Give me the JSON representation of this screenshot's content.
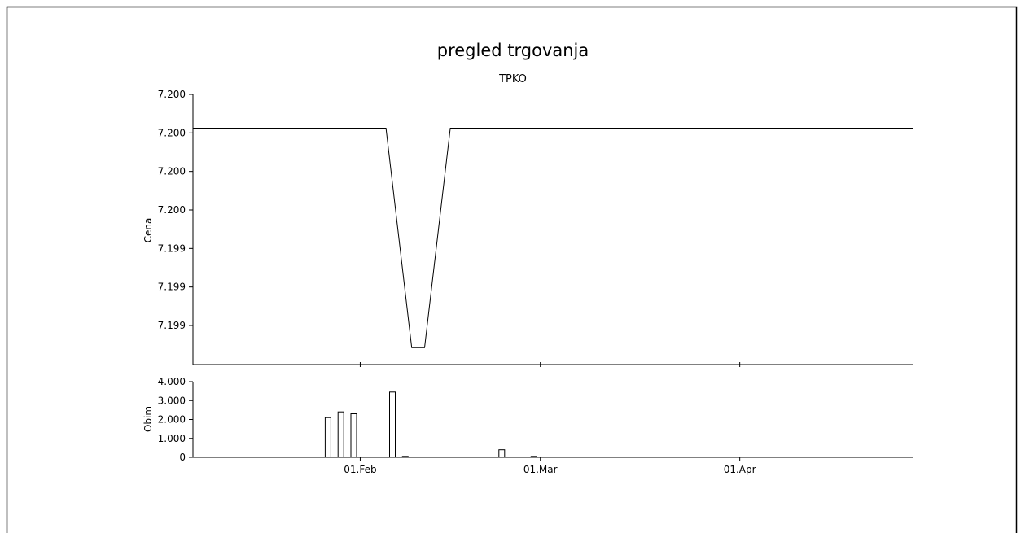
{
  "chart_data": [
    {
      "type": "line",
      "title": "pregled trgovanja",
      "subtitle": "TPKO",
      "ylabel": "Cena",
      "xlabel": "",
      "xlim": [
        "2014-01-06",
        "2014-04-28"
      ],
      "ytick_labels": [
        "7.200",
        "7.200",
        "7.200",
        "7.200",
        "7.199",
        "7.199",
        "7.199"
      ],
      "ylim": [
        7.1986,
        7.2002
      ],
      "grid": false,
      "series": [
        {
          "points": [
            {
              "x": "2014-01-06",
              "y": 7.2
            },
            {
              "x": "2014-02-05",
              "y": 7.2
            },
            {
              "x": "2014-02-09",
              "y": 7.1987
            },
            {
              "x": "2014-02-11",
              "y": 7.1987
            },
            {
              "x": "2014-02-15",
              "y": 7.2
            },
            {
              "x": "2014-04-28",
              "y": 7.2
            }
          ]
        }
      ]
    },
    {
      "type": "bar",
      "ylabel": "Obim",
      "xlabel": "",
      "xlim": [
        "2014-01-06",
        "2014-04-28"
      ],
      "ylim": [
        0,
        4000
      ],
      "ytick_labels": [
        "4.000",
        "3.000",
        "2.000",
        "1.000",
        "0"
      ],
      "xtick_labels": [
        "01.Feb",
        "01.Mar",
        "01.Apr"
      ],
      "grid": false,
      "bars": [
        {
          "x": "2014-01-27",
          "value": 2100
        },
        {
          "x": "2014-01-29",
          "value": 2400
        },
        {
          "x": "2014-01-31",
          "value": 2300
        },
        {
          "x": "2014-02-06",
          "value": 3450
        },
        {
          "x": "2014-02-08",
          "value": 50
        },
        {
          "x": "2014-02-23",
          "value": 400
        },
        {
          "x": "2014-02-28",
          "value": 50
        }
      ]
    }
  ]
}
